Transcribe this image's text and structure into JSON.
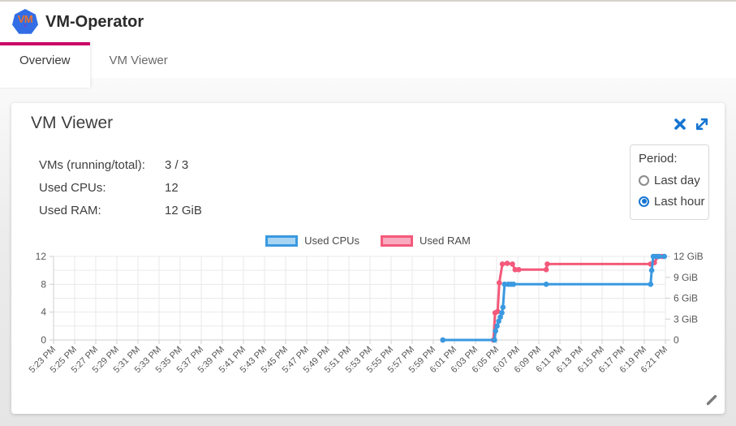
{
  "header": {
    "title": "VM-Operator",
    "logo_text": "VM",
    "logo_sub": "▾"
  },
  "tabs": [
    {
      "label": "Overview",
      "active": true
    },
    {
      "label": "VM Viewer",
      "active": false
    }
  ],
  "card": {
    "title": "VM Viewer",
    "actions": {
      "close_icon": "close",
      "expand_icon": "expand"
    },
    "stats": [
      {
        "label": "VMs (running/total):",
        "value": "3 / 3"
      },
      {
        "label": "Used CPUs:",
        "value": "12"
      },
      {
        "label": "Used RAM:",
        "value": "12 GiB"
      }
    ],
    "period": {
      "label": "Period:",
      "options": [
        {
          "label": "Last day",
          "selected": false
        },
        {
          "label": "Last hour",
          "selected": true
        }
      ]
    }
  },
  "colors": {
    "accent_pink_tab": "#cb0667",
    "icon_blue": "#1775d1",
    "cpu_blue": "#3a99e0",
    "ram_pink": "#f4597b"
  },
  "chart_data": {
    "type": "line",
    "title": "",
    "x_axis": {
      "unit": "time",
      "interval_minutes": 2,
      "labels": [
        "5:23 PM",
        "5:25 PM",
        "5:27 PM",
        "5:29 PM",
        "5:31 PM",
        "5:33 PM",
        "5:35 PM",
        "5:37 PM",
        "5:39 PM",
        "5:41 PM",
        "5:43 PM",
        "5:45 PM",
        "5:47 PM",
        "5:49 PM",
        "5:51 PM",
        "5:53 PM",
        "5:55 PM",
        "5:57 PM",
        "5:59 PM",
        "6:01 PM",
        "6:03 PM",
        "6:05 PM",
        "6:07 PM",
        "6:09 PM",
        "6:11 PM",
        "6:13 PM",
        "6:15 PM",
        "6:17 PM",
        "6:19 PM",
        "6:21 PM"
      ]
    },
    "y_axis_left": {
      "range": [
        0,
        12
      ],
      "tick_values": [
        0,
        4,
        8,
        12
      ],
      "gridline_step": 2
    },
    "y_axis_right": {
      "range": [
        0,
        12
      ],
      "unit": "GiB",
      "tick_values": [
        0,
        3,
        6,
        9,
        12
      ],
      "tick_labels": [
        "0",
        "3 GiB",
        "6 GiB",
        "9 GiB",
        "12 GiB"
      ]
    },
    "grid": true,
    "legend_position": "top",
    "legend": [
      {
        "name": "Used CPUs",
        "stroke": "#3a99e0",
        "fill": "#a9d4f2"
      },
      {
        "name": "Used RAM",
        "stroke": "#f4597b",
        "fill": "#f9abc0"
      }
    ],
    "series": [
      {
        "name": "Used RAM",
        "axis": "right",
        "color": "#f4597b",
        "points_minutes_after_5_23pm": [
          [
            36.9,
            0
          ],
          [
            41.7,
            0
          ],
          [
            41.85,
            3.9
          ],
          [
            42.1,
            4.1
          ],
          [
            42.25,
            8.2
          ],
          [
            42.55,
            10.9
          ],
          [
            43.0,
            11.0
          ],
          [
            43.5,
            10.9
          ],
          [
            43.75,
            10.1
          ],
          [
            44.1,
            10.1
          ],
          [
            46.7,
            10.1
          ],
          [
            46.8,
            10.9
          ],
          [
            56.6,
            10.9
          ],
          [
            56.95,
            11.1
          ],
          [
            57.3,
            12
          ],
          [
            57.7,
            12
          ]
        ]
      },
      {
        "name": "Used CPUs",
        "axis": "left",
        "color": "#3a99e0",
        "points_minutes_after_5_23pm": [
          [
            36.9,
            0
          ],
          [
            41.8,
            0
          ],
          [
            41.9,
            1.3
          ],
          [
            42.05,
            2.0
          ],
          [
            42.2,
            2.7
          ],
          [
            42.35,
            3.3
          ],
          [
            42.5,
            3.9
          ],
          [
            42.6,
            4.7
          ],
          [
            42.75,
            8
          ],
          [
            43.1,
            8
          ],
          [
            43.35,
            8
          ],
          [
            43.6,
            8
          ],
          [
            46.7,
            8
          ],
          [
            56.6,
            8
          ],
          [
            56.7,
            10
          ],
          [
            56.85,
            12
          ],
          [
            57.1,
            12
          ],
          [
            57.4,
            12
          ],
          [
            57.9,
            12
          ]
        ]
      }
    ]
  }
}
